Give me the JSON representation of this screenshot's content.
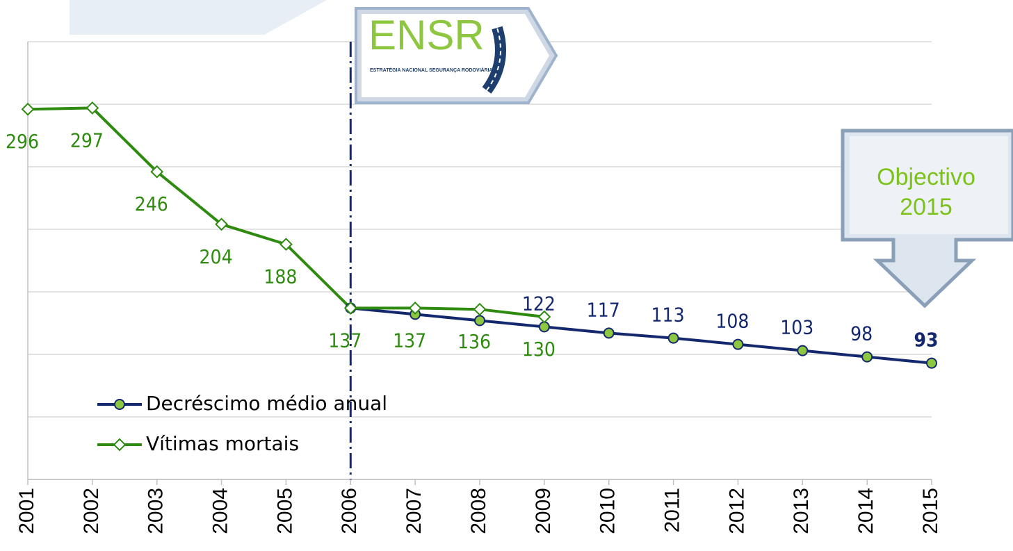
{
  "chart_data": {
    "type": "line",
    "categories": [
      "2001",
      "2002",
      "2003",
      "2004",
      "2005",
      "2006",
      "2007",
      "2008",
      "2009",
      "2010",
      "2011",
      "2012",
      "2013",
      "2014",
      "2015"
    ],
    "series": [
      {
        "name": "Decréscimo médio anual",
        "color": "#14286e",
        "marker_fill": "#8dc63f",
        "marker": "circle",
        "values": [
          null,
          null,
          null,
          null,
          null,
          137,
          132,
          127,
          122,
          117,
          113,
          108,
          103,
          98,
          93
        ],
        "value_labels": [
          null,
          null,
          null,
          null,
          null,
          null,
          null,
          null,
          "122",
          "117",
          "113",
          "108",
          "103",
          "98",
          "93"
        ]
      },
      {
        "name": "Vítimas mortais",
        "color": "#2e8b0f",
        "marker_fill": "#ffffff",
        "marker": "diamond",
        "values": [
          296,
          297,
          246,
          204,
          188,
          137,
          137,
          136,
          130,
          null,
          null,
          null,
          null,
          null,
          null
        ]
      }
    ],
    "ylim": [
      0,
      350
    ],
    "yticks": [
      0,
      50,
      100,
      150,
      200,
      250,
      300,
      350
    ],
    "grid": true,
    "divider_category": "2006",
    "legend": "lower left"
  },
  "annotations": {
    "logo_title": "ENSR",
    "logo_subtitle": "ESTRATÉGIA NACIONAL SEGURANÇA RODOVIÁRIA",
    "target_line1": "Objectivo",
    "target_line2": "2015"
  }
}
